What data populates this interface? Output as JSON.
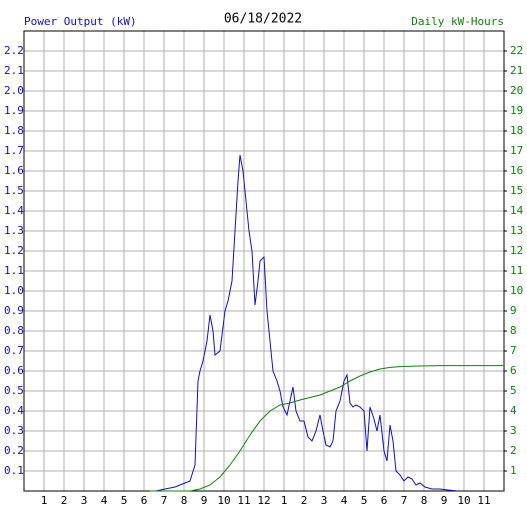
{
  "chart_data": {
    "type": "line",
    "title": "06/18/2022",
    "y_label": "Power Output (kW)",
    "y2_label": "Daily kW-Hours",
    "xlim": [
      0,
      24
    ],
    "xticks": [
      1,
      2,
      3,
      4,
      5,
      6,
      7,
      8,
      9,
      10,
      11,
      12,
      {
        "value": 13,
        "label": "1"
      },
      {
        "value": 14,
        "label": "2"
      },
      {
        "value": 15,
        "label": "3"
      },
      {
        "value": 16,
        "label": "4"
      },
      {
        "value": 17,
        "label": "5"
      },
      {
        "value": 18,
        "label": "6"
      },
      {
        "value": 19,
        "label": "7"
      },
      {
        "value": 20,
        "label": "8"
      },
      {
        "value": 21,
        "label": "9"
      },
      {
        "value": 22,
        "label": "10"
      },
      {
        "value": 23,
        "label": "11"
      }
    ],
    "ylim": [
      0,
      2.3
    ],
    "yticks": [
      0.1,
      0.2,
      0.3,
      0.4,
      0.5,
      0.6,
      0.7,
      0.8,
      0.9,
      {
        "value": 1,
        "label": "1.0"
      },
      1.1,
      1.2,
      1.3,
      1.4,
      1.5,
      1.6,
      1.7,
      1.8,
      1.9,
      {
        "value": 2,
        "label": "2.0"
      },
      2.1,
      2.2
    ],
    "y2lim": [
      0,
      23
    ],
    "y2ticks": [
      1,
      2,
      3,
      4,
      5,
      6,
      7,
      8,
      9,
      10,
      11,
      12,
      13,
      14,
      15,
      16,
      17,
      18,
      19,
      20,
      21,
      22
    ],
    "grid": true,
    "y_color": "#1010c0",
    "y2_color": "#108010",
    "series": [
      {
        "name": "Power Output (kW)",
        "color": "#1010c0",
        "axis": "y",
        "x": [
          6.6,
          7.05,
          7.55,
          8.05,
          8.3,
          8.55,
          8.7,
          8.8,
          8.95,
          9.15,
          9.3,
          9.45,
          9.55,
          9.8,
          10.05,
          10.2,
          10.4,
          10.55,
          10.7,
          10.8,
          10.95,
          11.1,
          11.25,
          11.4,
          11.55,
          11.7,
          11.8,
          12.0,
          12.15,
          12.3,
          12.45,
          12.65,
          12.8,
          12.95,
          13.15,
          13.3,
          13.45,
          13.6,
          13.8,
          14.0,
          14.2,
          14.4,
          14.6,
          14.8,
          14.95,
          15.1,
          15.3,
          15.45,
          15.6,
          15.8,
          16.0,
          16.15,
          16.3,
          16.45,
          16.6,
          16.8,
          17.0,
          17.15,
          17.3,
          17.5,
          17.65,
          17.8,
          18.0,
          18.15,
          18.3,
          18.45,
          18.6,
          18.8,
          19.0,
          19.2,
          19.4,
          19.6,
          19.8,
          20.05,
          20.4,
          20.8,
          21.2,
          21.7
        ],
        "values": [
          0,
          0.01,
          0.02,
          0.04,
          0.05,
          0.13,
          0.55,
          0.6,
          0.65,
          0.75,
          0.88,
          0.8,
          0.68,
          0.7,
          0.9,
          0.95,
          1.05,
          1.3,
          1.55,
          1.68,
          1.6,
          1.45,
          1.3,
          1.2,
          0.93,
          1.05,
          1.15,
          1.17,
          0.9,
          0.75,
          0.6,
          0.55,
          0.5,
          0.42,
          0.38,
          0.45,
          0.52,
          0.4,
          0.35,
          0.35,
          0.27,
          0.25,
          0.3,
          0.38,
          0.3,
          0.23,
          0.22,
          0.25,
          0.4,
          0.45,
          0.55,
          0.58,
          0.44,
          0.42,
          0.43,
          0.42,
          0.4,
          0.2,
          0.42,
          0.36,
          0.3,
          0.38,
          0.2,
          0.15,
          0.33,
          0.25,
          0.1,
          0.08,
          0.05,
          0.07,
          0.06,
          0.03,
          0.04,
          0.02,
          0.01,
          0.01,
          0.005,
          0
        ]
      },
      {
        "name": "Daily kW-Hours",
        "color": "#108010",
        "axis": "y2",
        "x": [
          6.3,
          8.3,
          8.8,
          9.3,
          9.8,
          10.3,
          10.8,
          11.3,
          11.8,
          12.3,
          12.8,
          13.3,
          13.8,
          14.8,
          15.8,
          16.3,
          16.8,
          17.3,
          17.8,
          18.3,
          18.8,
          19.8,
          20.8,
          23.95
        ],
        "values": [
          0,
          0,
          0.1,
          0.3,
          0.7,
          1.3,
          2.0,
          2.8,
          3.5,
          4.0,
          4.3,
          4.4,
          4.55,
          4.8,
          5.2,
          5.5,
          5.75,
          5.95,
          6.1,
          6.18,
          6.22,
          6.25,
          6.27,
          6.27
        ]
      }
    ]
  }
}
